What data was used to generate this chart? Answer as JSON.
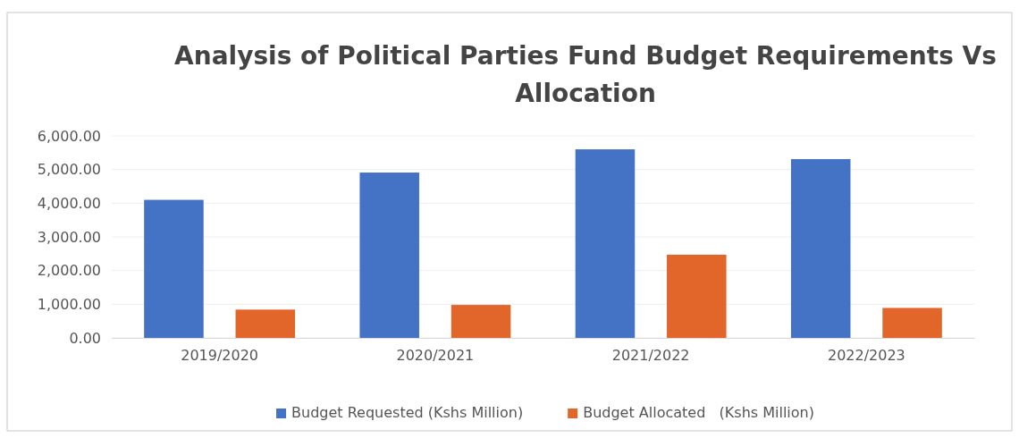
{
  "chart_data": {
    "type": "bar",
    "title": "Analysis of Political Parties Fund Budget Requirements Vs Allocation",
    "categories": [
      "2019/2020",
      "2020/2021",
      "2021/2022",
      "2022/2023"
    ],
    "series": [
      {
        "name": "Budget Requested (Kshs Million)",
        "color": "#4472c4",
        "values": [
          4100,
          4910,
          5600,
          5310
        ]
      },
      {
        "name": "Budget Allocated   (Kshs Million)",
        "color": "#e2662a",
        "values": [
          840,
          980,
          2470,
          890
        ]
      }
    ],
    "ylim": [
      0,
      6000
    ],
    "yticks": [
      {
        "value": 0,
        "label": "0.00"
      },
      {
        "value": 1000,
        "label": "1,000.00"
      },
      {
        "value": 2000,
        "label": "2,000.00"
      },
      {
        "value": 3000,
        "label": "3,000.00"
      },
      {
        "value": 4000,
        "label": "4,000.00"
      },
      {
        "value": 5000,
        "label": "5,000.00"
      },
      {
        "value": 6000,
        "label": "6,000.00"
      }
    ],
    "grid": "y",
    "legend": "bottom"
  }
}
